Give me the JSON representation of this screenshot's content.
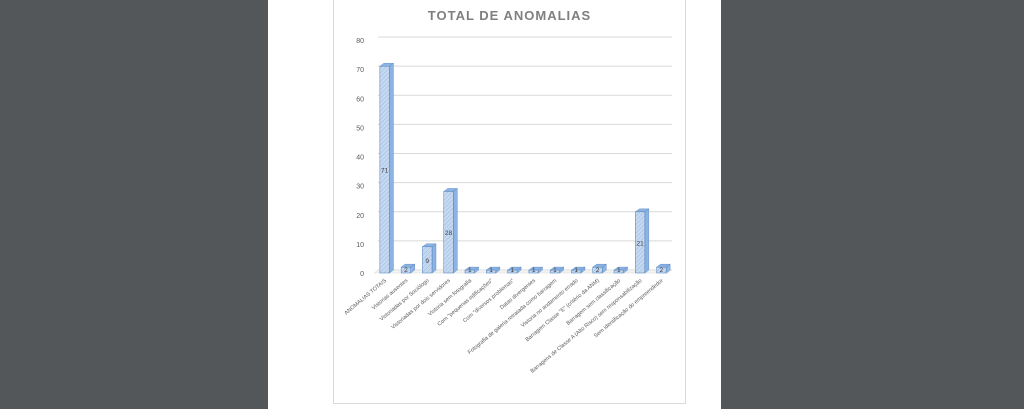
{
  "colors": {
    "background": "#53575a",
    "page": "#ffffff",
    "bar_front": "#c5d9f1",
    "bar_side": "#8db3e2",
    "bar_edge": "#4f81bd",
    "grid": "#d9d9d9",
    "text": "#595959"
  },
  "chart_data": {
    "type": "bar",
    "title": "TOTAL DE ANOMALIAS",
    "xlabel": "",
    "ylabel": "",
    "ylim": [
      0,
      80
    ],
    "yticks": [
      0,
      10,
      20,
      30,
      40,
      50,
      60,
      70,
      80
    ],
    "grid": true,
    "style": "3d-column",
    "categories": [
      "ANOMALIAS TOTAIS",
      "Vistorias ausentes",
      "Vistoriadas por Sociólogo",
      "Vistoriadas por dois servidores",
      "Vistoria sem fotografia",
      "Com \"pequenas edificações\"",
      "Com \"diversos problemas\"",
      "Datas divergentes",
      "Fotografia de galeria retratada como barragem",
      "Vistoria no andamento errado",
      "Barragem Classe \"E\" (critério da ANM)",
      "Barragem sem classificação",
      "Barragens de Classe A (Alto Risco) sem responsabilização",
      "Sem identificação do empreendedor"
    ],
    "values": [
      71,
      2,
      9,
      28,
      1,
      1,
      1,
      1,
      1,
      1,
      2,
      1,
      21,
      2
    ],
    "data_labels": [
      "71",
      "2",
      "9",
      "28",
      "1",
      "1",
      "1",
      "1",
      "1",
      "1",
      "2",
      "1",
      "21",
      "2"
    ]
  }
}
